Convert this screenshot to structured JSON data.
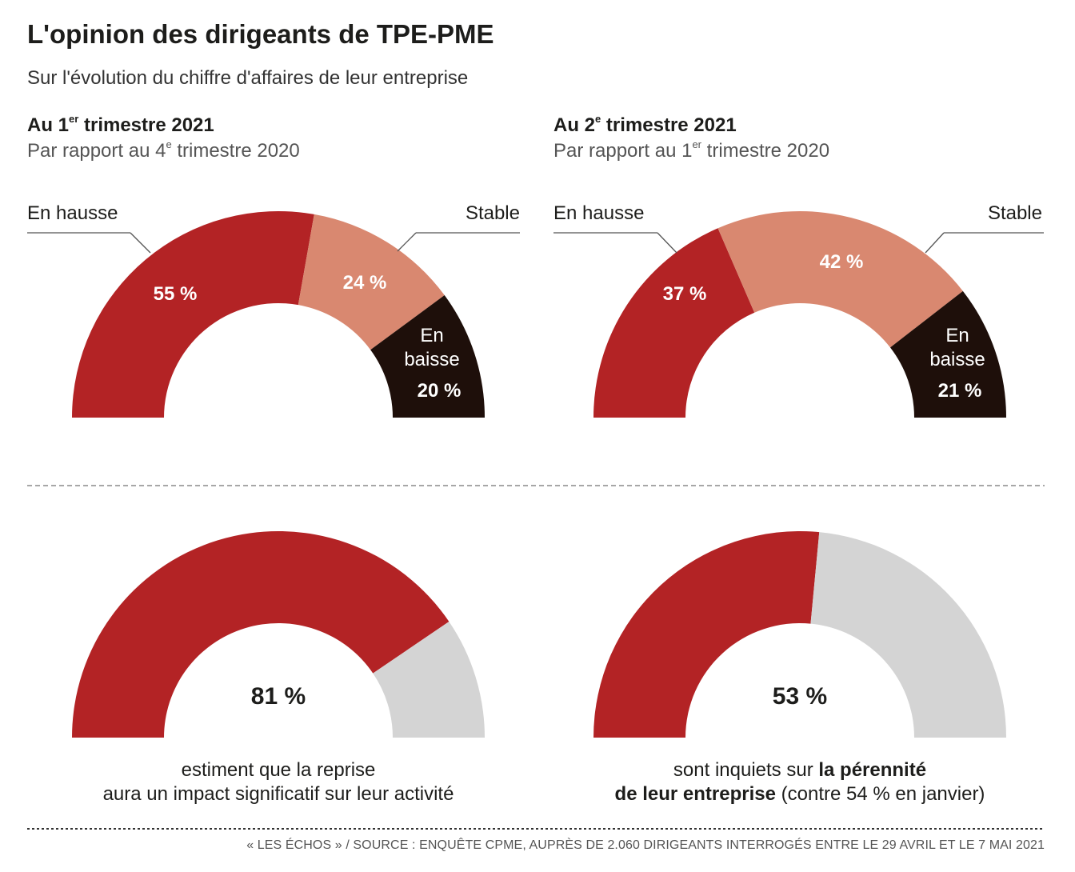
{
  "title": "L'opinion des dirigeants de TPE-PME",
  "subtitle": "Sur l'évolution du chiffre d'affaires de leur entreprise",
  "colors": {
    "hausse": "#b32325",
    "stable": "#d98870",
    "baisse": "#1e0f0a",
    "gray": "#d4d4d4"
  },
  "panels": [
    {
      "title_pre": "Au 1",
      "title_sup": "er",
      "title_post": " trimestre 2021",
      "sub_pre": "Par rapport au 4",
      "sub_sup": "e",
      "sub_post": " trimestre 2020",
      "label_hausse": "En hausse",
      "label_stable": "Stable",
      "label_baisse_1": "En",
      "label_baisse_2": "baisse"
    },
    {
      "title_pre": "Au 2",
      "title_sup": "e",
      "title_post": " trimestre 2021",
      "sub_pre": "Par rapport au 1",
      "sub_sup": "er",
      "sub_post": " trimestre 2020",
      "label_hausse": "En hausse",
      "label_stable": "Stable",
      "label_baisse_1": "En",
      "label_baisse_2": "baisse"
    }
  ],
  "captions": {
    "left_1": "estiment que la reprise",
    "left_2": "aura un impact significatif sur leur activité",
    "right_1_pre": "sont inquiets sur ",
    "right_1_bold": "la pérennité",
    "right_2_bold": "de leur entreprise",
    "right_2_post": " (contre 54 % en janvier)"
  },
  "source": "« LES ÉCHOS » / SOURCE : ENQUÊTE CPME, AUPRÈS DE 2.060 DIRIGEANTS INTERROGÉS ENTRE LE 29 AVRIL ET LE 7 MAI 2021",
  "chart_data": [
    {
      "type": "pie",
      "title": "Au 1er trimestre 2021",
      "categories": [
        "En hausse",
        "Stable",
        "En baisse"
      ],
      "values": [
        55,
        24,
        20
      ],
      "labels": [
        "55 %",
        "24 %",
        "20 %"
      ]
    },
    {
      "type": "pie",
      "title": "Au 2e trimestre 2021",
      "categories": [
        "En hausse",
        "Stable",
        "En baisse"
      ],
      "values": [
        37,
        42,
        21
      ],
      "labels": [
        "37 %",
        "42 %",
        "21 %"
      ]
    },
    {
      "type": "pie",
      "values": [
        81
      ],
      "labels": [
        "81 %"
      ]
    },
    {
      "type": "pie",
      "values": [
        53
      ],
      "labels": [
        "53 %"
      ]
    }
  ]
}
